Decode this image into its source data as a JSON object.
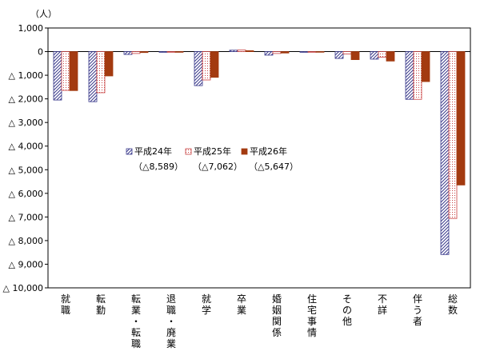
{
  "chart_data": {
    "type": "bar",
    "unit_label": "（人）",
    "categories": [
      "就職",
      "転勤",
      "転業・転職",
      "退職・廃業",
      "就学",
      "卒業",
      "婚姻関係",
      "住宅事情",
      "その他",
      "不詳",
      "伴う者",
      "総数"
    ],
    "ylim": [
      -10000,
      1000
    ],
    "y_ticks": [
      1000,
      0,
      -1000,
      -2000,
      -3000,
      -4000,
      -5000,
      -6000,
      -7000,
      -8000,
      -9000,
      -10000
    ],
    "y_tick_labels": [
      "1,000",
      "0",
      "△ 1,000",
      "△ 2,000",
      "△ 3,000",
      "△ 4,000",
      "△ 5,000",
      "△ 6,000",
      "△ 7,000",
      "△ 8,000",
      "△ 9,000",
      "△ 10,000"
    ],
    "legend_position": "center",
    "series": [
      {
        "name": "平成24年",
        "sub": "（△8,589）",
        "color": "#3a3a8c",
        "pattern": "diagonal-hatch",
        "values": [
          -2050,
          -2120,
          -120,
          -30,
          -1440,
          60,
          -150,
          -30,
          -290,
          -320,
          -2020,
          -8589
        ]
      },
      {
        "name": "平成25年",
        "sub": "（△7,062）",
        "color": "#d04040",
        "pattern": "dots",
        "values": [
          -1640,
          -1740,
          -80,
          -20,
          -1200,
          70,
          -80,
          -20,
          -100,
          -240,
          -2020,
          -7062
        ]
      },
      {
        "name": "平成26年",
        "sub": "（△5,647）",
        "color": "#a33a10",
        "pattern": "solid",
        "values": [
          -1650,
          -1030,
          -40,
          -30,
          -1090,
          40,
          -60,
          -20,
          -340,
          -400,
          -1270,
          -5647
        ]
      }
    ]
  }
}
